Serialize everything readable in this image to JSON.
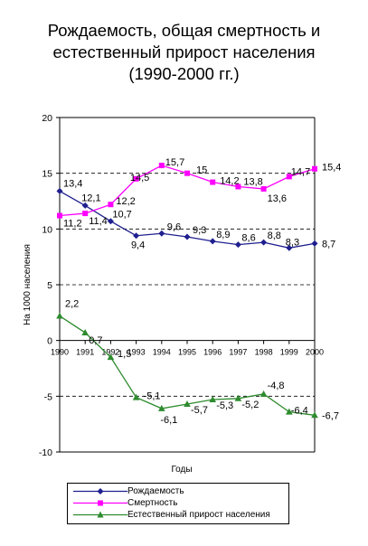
{
  "chart_data": {
    "type": "line",
    "title": [
      "Рождаемость, общая смертность и",
      "естественный прирост населения",
      "(1990-2000 гг.)"
    ],
    "xlabel": "Годы",
    "ylabel": "На 1000 населения",
    "x": [
      "1990",
      "1991",
      "1992",
      "1993",
      "1994",
      "1995",
      "1996",
      "1997",
      "1998",
      "1999",
      "2000"
    ],
    "ylim": [
      -10,
      20
    ],
    "yticks": [
      -10,
      -5,
      0,
      5,
      10,
      15,
      20
    ],
    "grid": "dashed at -5, 5, 10, 15",
    "legend_placement": "bottom",
    "series": [
      {
        "name": "Рождаемость",
        "color": "#1f1f8f",
        "marker": "diamond",
        "values": [
          13.4,
          12.1,
          10.7,
          9.4,
          9.6,
          9.3,
          8.9,
          8.6,
          8.8,
          8.3,
          8.7
        ],
        "labels": [
          "13,4",
          "12,1",
          "10,7",
          "9,4",
          "9,6",
          "9,3",
          "8,9",
          "8,6",
          "8,8",
          "8,3",
          "8,7"
        ]
      },
      {
        "name": "Смертность",
        "color": "#ff00ff",
        "marker": "square",
        "values": [
          11.2,
          11.4,
          12.2,
          14.5,
          15.7,
          15.0,
          14.2,
          13.8,
          13.6,
          14.7,
          15.4
        ],
        "labels": [
          "11,2",
          "11,4",
          "12,2",
          "14,5",
          "15,7",
          "15",
          "14,2",
          "13,8",
          "13,6",
          "14,7",
          "15,4"
        ]
      },
      {
        "name": "Естественный прирост населения",
        "color": "#2e8b2e",
        "marker": "triangle",
        "values": [
          2.2,
          0.7,
          -1.5,
          -5.1,
          -6.1,
          -5.7,
          -5.3,
          -5.2,
          -4.8,
          -6.4,
          -6.7
        ],
        "labels": [
          "2,2",
          "0,7",
          "-1,5",
          "-5,1",
          "-6,1",
          "-5,7",
          "-5,3",
          "-5,2",
          "-4,8",
          "-6,4",
          "-6,7"
        ]
      }
    ]
  }
}
